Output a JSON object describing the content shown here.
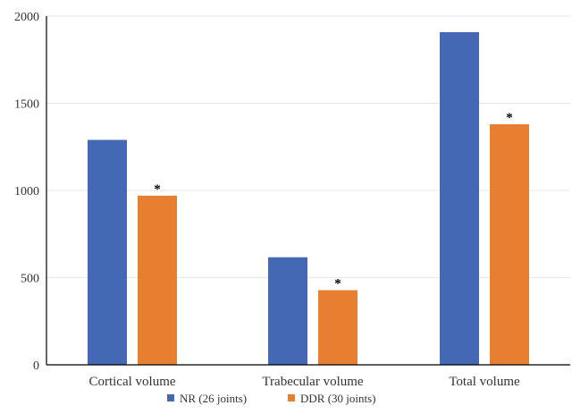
{
  "chart_data": {
    "type": "bar",
    "categories": [
      "Cortical volume",
      "Trabecular volume",
      "Total volume"
    ],
    "series": [
      {
        "name": "NR (26 joints)",
        "color": "#4468b4",
        "values": [
          1290,
          617,
          1908
        ],
        "annotations": [
          "",
          "",
          ""
        ]
      },
      {
        "name": "DDR (30 joints)",
        "color": "#e68030",
        "values": [
          970,
          428,
          1380
        ],
        "annotations": [
          "*",
          "*",
          "*"
        ]
      }
    ],
    "yticks": [
      "0",
      "500",
      "1000",
      "1500",
      "2000"
    ],
    "ylim": [
      0,
      2000
    ],
    "grid": true,
    "legend_position": "bottom",
    "title": "",
    "xlabel": "",
    "ylabel": ""
  }
}
